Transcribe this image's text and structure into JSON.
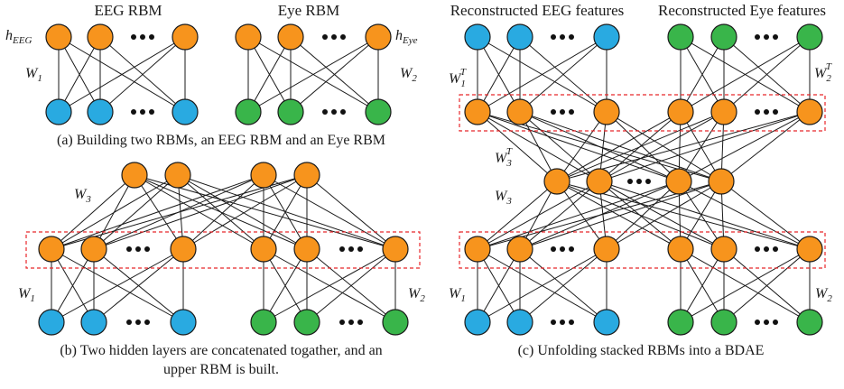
{
  "colors": {
    "hidden": "#f7941d",
    "eeg": "#29aae1",
    "eye": "#39b54a",
    "dashed_box": "#e8272b"
  },
  "panel_a": {
    "eeg_title": "EEG RBM",
    "eye_title": "Eye RBM",
    "h_eeg": "h",
    "h_eeg_sub": "EEG",
    "h_eye": "h",
    "h_eye_sub": "Eye",
    "w1": "W",
    "w1_sub": "1",
    "w2": "W",
    "w2_sub": "2",
    "caption": "(a) Building two RBMs, an EEG RBM and an Eye RBM"
  },
  "panel_b": {
    "w3": "W",
    "w3_sub": "3",
    "w1": "W",
    "w1_sub": "1",
    "w2": "W",
    "w2_sub": "2",
    "caption_line1": "(b) Two hidden layers are concatenated togather, and an",
    "caption_line2": "upper RBM is built."
  },
  "panel_c": {
    "recon_eeg_title": "Reconstructed EEG features",
    "recon_eye_title": "Reconstructed Eye features",
    "w1t": "W",
    "w1t_sub": "1",
    "w1t_sup": "T",
    "w2t": "W",
    "w2t_sub": "2",
    "w2t_sup": "T",
    "w3t": "W",
    "w3t_sub": "3",
    "w3t_sup": "T",
    "w3": "W",
    "w3_sub": "3",
    "w1": "W",
    "w1_sub": "1",
    "w2": "W",
    "w2_sub": "2",
    "caption": "(c) Unfolding stacked RBMs into a BDAE"
  }
}
